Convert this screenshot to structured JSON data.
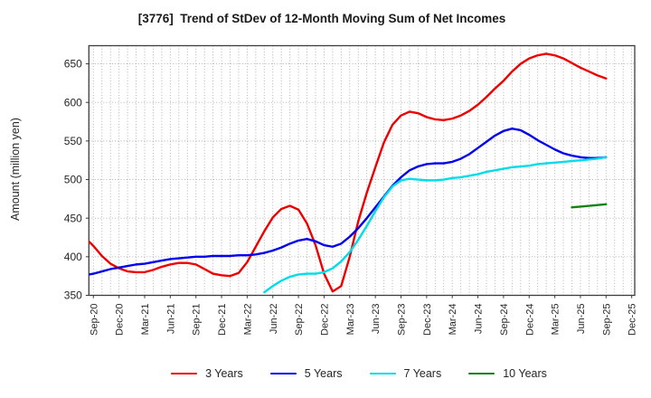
{
  "chart_data": {
    "type": "line",
    "title": "[3776]  Trend of StDev of 12-Month Moving Sum of Net Incomes",
    "ylabel": "Amount (million yen)",
    "x_tick_labels": [
      "Sep-20",
      "Dec-20",
      "Mar-21",
      "Jun-21",
      "Sep-21",
      "Dec-21",
      "Mar-22",
      "Jun-22",
      "Sep-22",
      "Dec-22",
      "Mar-23",
      "Jun-23",
      "Sep-23",
      "Dec-23",
      "Mar-24",
      "Jun-24",
      "Sep-24",
      "Dec-24",
      "Mar-25",
      "Jun-25",
      "Sep-25",
      "Dec-25"
    ],
    "x_months_per_tick": 3,
    "y_ticks": [
      350,
      400,
      450,
      500,
      550,
      600,
      650
    ],
    "ylim": [
      350,
      673.5
    ],
    "grid": true,
    "legend_position": "bottom",
    "series": [
      {
        "name": "3 Years",
        "color": "#ee0000",
        "start_month": -1,
        "values": [
          425,
          414,
          401,
          391,
          385,
          381,
          380,
          380,
          383,
          387,
          390,
          392,
          392,
          390,
          384,
          378,
          376,
          375,
          379,
          393,
          413,
          433,
          451,
          462,
          466,
          461,
          443,
          415,
          378,
          355,
          362,
          400,
          446,
          483,
          516,
          548,
          571,
          583,
          588,
          586,
          581,
          578,
          577,
          579,
          583,
          589,
          597,
          607,
          618,
          628,
          640,
          650,
          657,
          661,
          663,
          661,
          657,
          651,
          645,
          640,
          635,
          631
        ]
      },
      {
        "name": "5 Years",
        "color": "#0000ee",
        "start_month": -1,
        "values": [
          376,
          378,
          381,
          384,
          386,
          388,
          390,
          391,
          393,
          395,
          397,
          398,
          399,
          400,
          400,
          401,
          401,
          401,
          402,
          402,
          403,
          405,
          408,
          412,
          417,
          421,
          423,
          420,
          415,
          413,
          417,
          426,
          437,
          450,
          464,
          478,
          492,
          503,
          512,
          517,
          520,
          521,
          521,
          523,
          527,
          533,
          541,
          549,
          557,
          563,
          566,
          564,
          558,
          551,
          545,
          539,
          534,
          531,
          529,
          528,
          528,
          529
        ]
      },
      {
        "name": "7 Years",
        "color": "#00dce8",
        "start_month": 20,
        "values": [
          354,
          362,
          369,
          374,
          377,
          378,
          378,
          380,
          385,
          394,
          406,
          422,
          440,
          459,
          477,
          491,
          499,
          501,
          500,
          499,
          499,
          500,
          502,
          503,
          505,
          507,
          510,
          512,
          514,
          516,
          517,
          518,
          520,
          521,
          522,
          523,
          524,
          525,
          526,
          527,
          529
        ]
      },
      {
        "name": "10 Years",
        "color": "#168216",
        "start_month": 56,
        "values": [
          464,
          465,
          466,
          467,
          468
        ]
      }
    ]
  },
  "colors": {
    "grid": "#aaaaaa",
    "frame": "#3d3d3d",
    "tick_text": "#262626",
    "background": "#ffffff"
  }
}
